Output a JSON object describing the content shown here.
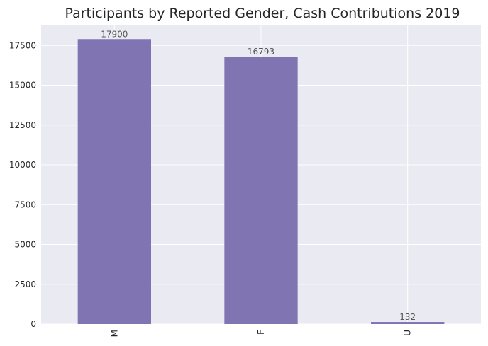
{
  "chart_data": {
    "type": "bar",
    "title": "Participants by Reported Gender, Cash Contributions 2019",
    "xlabel": "",
    "ylabel": "",
    "categories": [
      "M",
      "F",
      "U"
    ],
    "values": [
      17900,
      16793,
      132
    ],
    "value_labels": [
      "17900",
      "16793",
      "132"
    ],
    "ylim": [
      0,
      18800
    ],
    "yticks": [
      0,
      2500,
      5000,
      7500,
      10000,
      12500,
      15000,
      17500
    ],
    "ytick_labels": [
      "0",
      "2500",
      "5000",
      "7500",
      "10000",
      "12500",
      "15000",
      "17500"
    ],
    "grid": true,
    "x_tick_rotation": "vertical",
    "legend": "none",
    "colors": {
      "bar": "#8074b2",
      "plot_background": "#eaeaf2",
      "grid": "#ffffff",
      "text": "#262626",
      "data_label": "#555555"
    }
  }
}
